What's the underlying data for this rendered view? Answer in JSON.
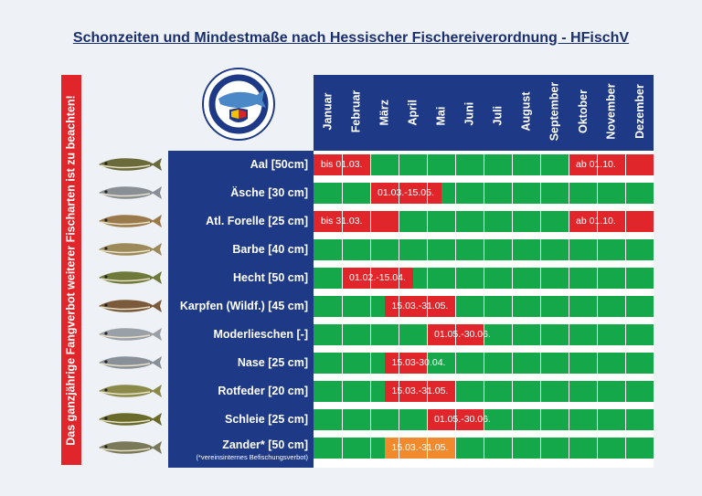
{
  "title": "Schonzeiten und Mindestmaße nach Hessischer Fischereiverordnung - HFischV",
  "side_banner": "Das ganzjährige Fangverbot weiterer Fischarten ist zu beachten!",
  "logo": {
    "ring_text": "ANGELVEREIN ÄSCHE GENSUNGEN-FELSBERG",
    "year": "e. V. 1948"
  },
  "months": [
    "Januar",
    "Februar",
    "März",
    "April",
    "Mai",
    "Juni",
    "Juli",
    "August",
    "September",
    "Oktober",
    "November",
    "Dezember"
  ],
  "fish": [
    {
      "name": "Aal [50cm]",
      "icon": "eel-icon",
      "closed": [
        {
          "from": 0,
          "to": 2,
          "label": "bis 01.03.",
          "color": "red"
        },
        {
          "from": 9,
          "to": 12,
          "label": "ab 01.10.",
          "color": "red"
        }
      ]
    },
    {
      "name": "Äsche [30 cm]",
      "icon": "grayling-icon",
      "closed": [
        {
          "from": 2,
          "to": 4.5,
          "label": "01.03.-15.05.",
          "color": "red"
        }
      ]
    },
    {
      "name": "Atl. Forelle [25 cm]",
      "icon": "trout-icon",
      "closed": [
        {
          "from": 0,
          "to": 3,
          "label": "bis 31.03.",
          "color": "red"
        },
        {
          "from": 9,
          "to": 12,
          "label": "ab 01.10.",
          "color": "red"
        }
      ]
    },
    {
      "name": "Barbe [40 cm]",
      "icon": "barbel-icon",
      "closed": []
    },
    {
      "name": "Hecht [50 cm]",
      "icon": "pike-icon",
      "closed": [
        {
          "from": 1,
          "to": 3.5,
          "label": "01.02.-15.04.",
          "color": "red"
        }
      ]
    },
    {
      "name": "Karpfen (Wildf.) [45 cm]",
      "icon": "carp-icon",
      "closed": [
        {
          "from": 2.5,
          "to": 5,
          "label": "15.03.-31.05.",
          "color": "red"
        }
      ]
    },
    {
      "name": "Moderlieschen [-]",
      "icon": "sunbleak-icon",
      "closed": [
        {
          "from": 4,
          "to": 6,
          "label": "01.05.-30.06.",
          "color": "red"
        }
      ]
    },
    {
      "name": "Nase [25 cm]",
      "icon": "nase-icon",
      "closed": [
        {
          "from": 2.5,
          "to": 4,
          "label": "15.03-30.04.",
          "color": "red"
        }
      ]
    },
    {
      "name": "Rotfeder [20 cm]",
      "icon": "rudd-icon",
      "closed": [
        {
          "from": 2.5,
          "to": 5,
          "label": "15.03.-31.05.",
          "color": "red"
        }
      ]
    },
    {
      "name": "Schleie [25 cm]",
      "icon": "tench-icon",
      "closed": [
        {
          "from": 4,
          "to": 6,
          "label": "01.05.-30.06.",
          "color": "red"
        }
      ]
    },
    {
      "name": "Zander* [50 cm]",
      "icon": "zander-icon",
      "closed": [
        {
          "from": 2.5,
          "to": 5,
          "label": "15.03.-31.05.",
          "color": "orange"
        }
      ]
    }
  ],
  "footnote": "(*vereinsinternes Befischungsverbot)",
  "colors": {
    "navy": "#1e3a86",
    "open": "#14a84a",
    "closed": "#e0262b",
    "club_closed": "#f08a2c",
    "banner": "#e0262b"
  }
}
